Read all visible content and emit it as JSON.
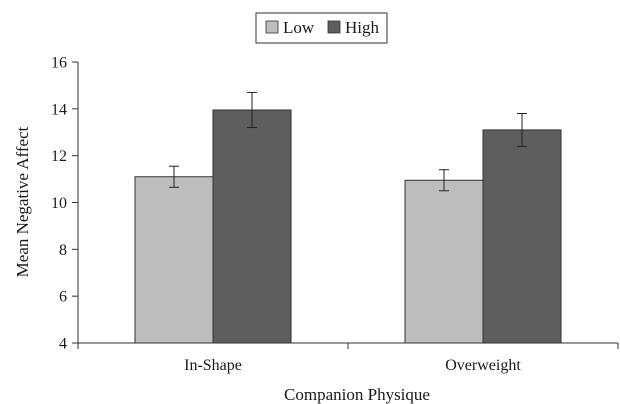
{
  "chart_data": {
    "type": "bar",
    "title": "",
    "xlabel": "Companion Physique",
    "ylabel": "Mean Negative Affect",
    "categories": [
      "In-Shape",
      "Overweight"
    ],
    "ylim": [
      4,
      16
    ],
    "yticks": [
      4,
      6,
      8,
      10,
      12,
      14,
      16
    ],
    "grid": false,
    "legend_position": "top-center",
    "series": [
      {
        "name": "Low",
        "color": "#bdbdbd",
        "values": [
          11.1,
          10.95
        ],
        "errors": [
          0.45,
          0.45
        ]
      },
      {
        "name": "High",
        "color": "#5e5e5e",
        "values": [
          13.95,
          13.1
        ],
        "errors": [
          0.75,
          0.7
        ]
      }
    ]
  }
}
